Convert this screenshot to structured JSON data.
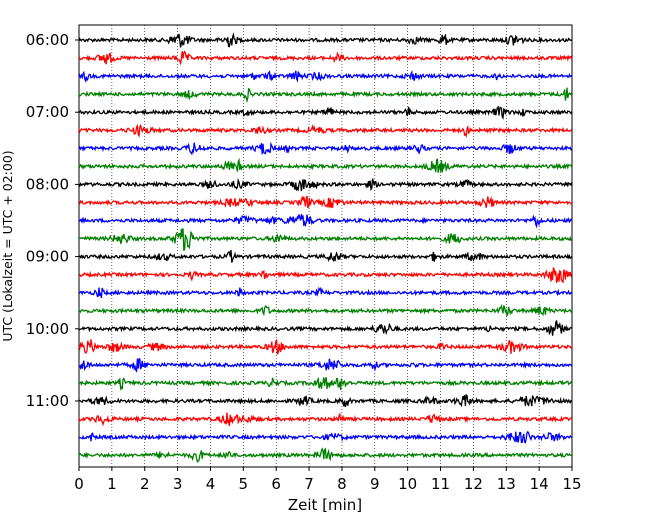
{
  "chart_data": {
    "type": "line",
    "xlabel": "Zeit  [min]",
    "ylabel": "UTC (Lokalzeit = UTC + 02:00)",
    "xlim": [
      0,
      15
    ],
    "x_ticks": [
      "0",
      "1",
      "2",
      "3",
      "4",
      "5",
      "6",
      "7",
      "8",
      "9",
      "10",
      "11",
      "12",
      "13",
      "14",
      "15"
    ],
    "y_tick_labels": [
      "06:00",
      "07:00",
      "08:00",
      "09:00",
      "10:00",
      "11:00"
    ],
    "traces_per_hour": 4,
    "trace_count": 24,
    "trace_colors": [
      "#000000",
      "#ff0000",
      "#0000ff",
      "#008000"
    ],
    "vertical_grid": "dotted",
    "series_description": "seismogram helicorder: one 15-minute trace per row, rows from 06:00 to 11:45 UTC"
  }
}
